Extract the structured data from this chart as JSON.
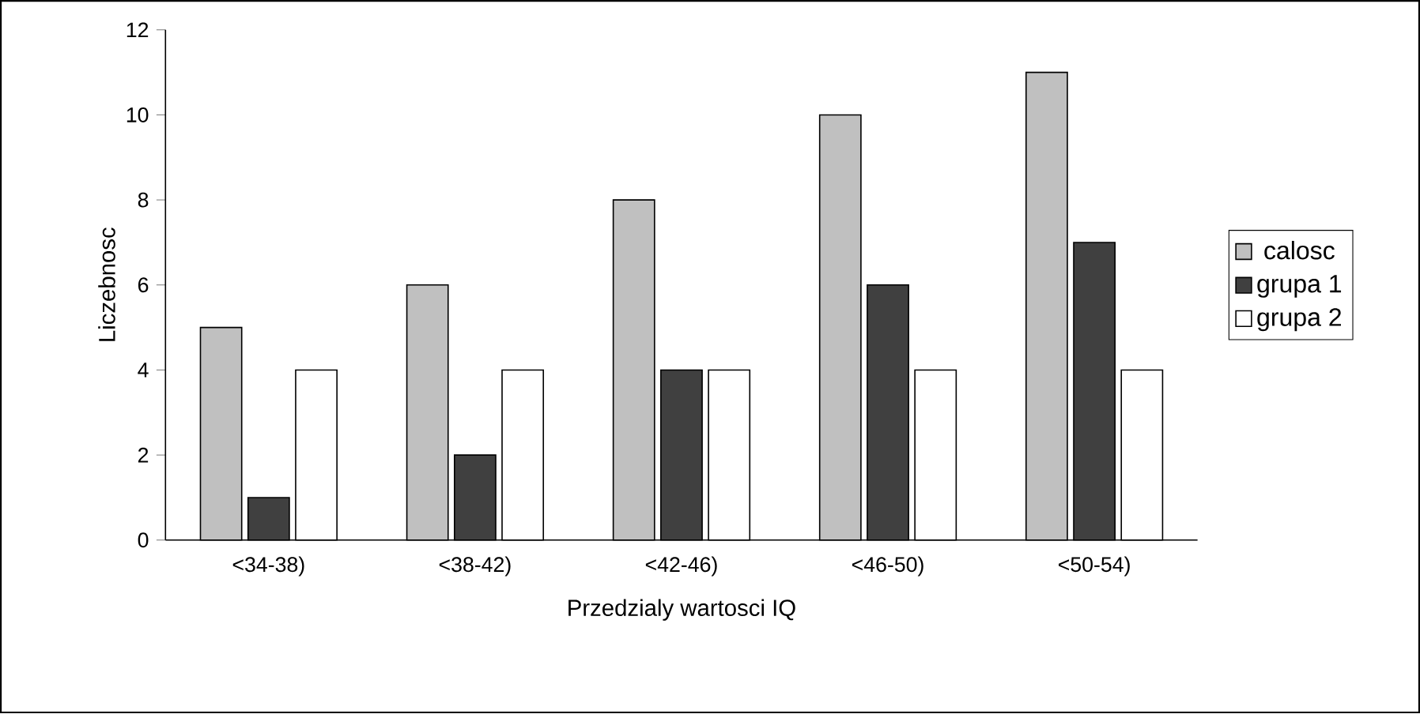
{
  "chart_data": {
    "type": "bar",
    "xlabel": "Przedzialy wartosci IQ",
    "ylabel": "Liczebnosc",
    "categories": [
      "<34-38)",
      "<38-42)",
      "<42-46)",
      "<46-50)",
      "<50-54)"
    ],
    "series": [
      {
        "name": "calosc",
        "color": "#c0c0c0",
        "values": [
          5,
          6,
          8,
          10,
          11
        ]
      },
      {
        "name": "grupa 1",
        "color": "#404040",
        "values": [
          1,
          2,
          4,
          6,
          7
        ]
      },
      {
        "name": "grupa 2",
        "color": "#ffffff",
        "values": [
          4,
          4,
          4,
          4,
          4
        ]
      }
    ],
    "ylim": [
      0,
      12
    ],
    "yticks": [
      0,
      2,
      4,
      6,
      8,
      10,
      12
    ],
    "legend": "right"
  }
}
